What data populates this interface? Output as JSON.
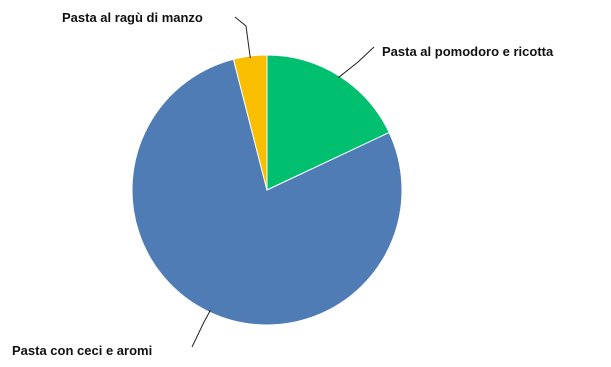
{
  "chart_data": {
    "type": "pie",
    "title": "",
    "slices": [
      {
        "label": "Pasta al pomodoro e ricotta",
        "value": 18,
        "color": "#00BF6F"
      },
      {
        "label": "Pasta con ceci e aromi",
        "value": 78,
        "color": "#507CB6"
      },
      {
        "label": "Pasta al ragù di manzo",
        "value": 4,
        "color": "#F9BE00"
      }
    ],
    "start": "12 o'clock",
    "direction": "clockwise",
    "legend": "none",
    "labels": "outside with leader lines"
  }
}
